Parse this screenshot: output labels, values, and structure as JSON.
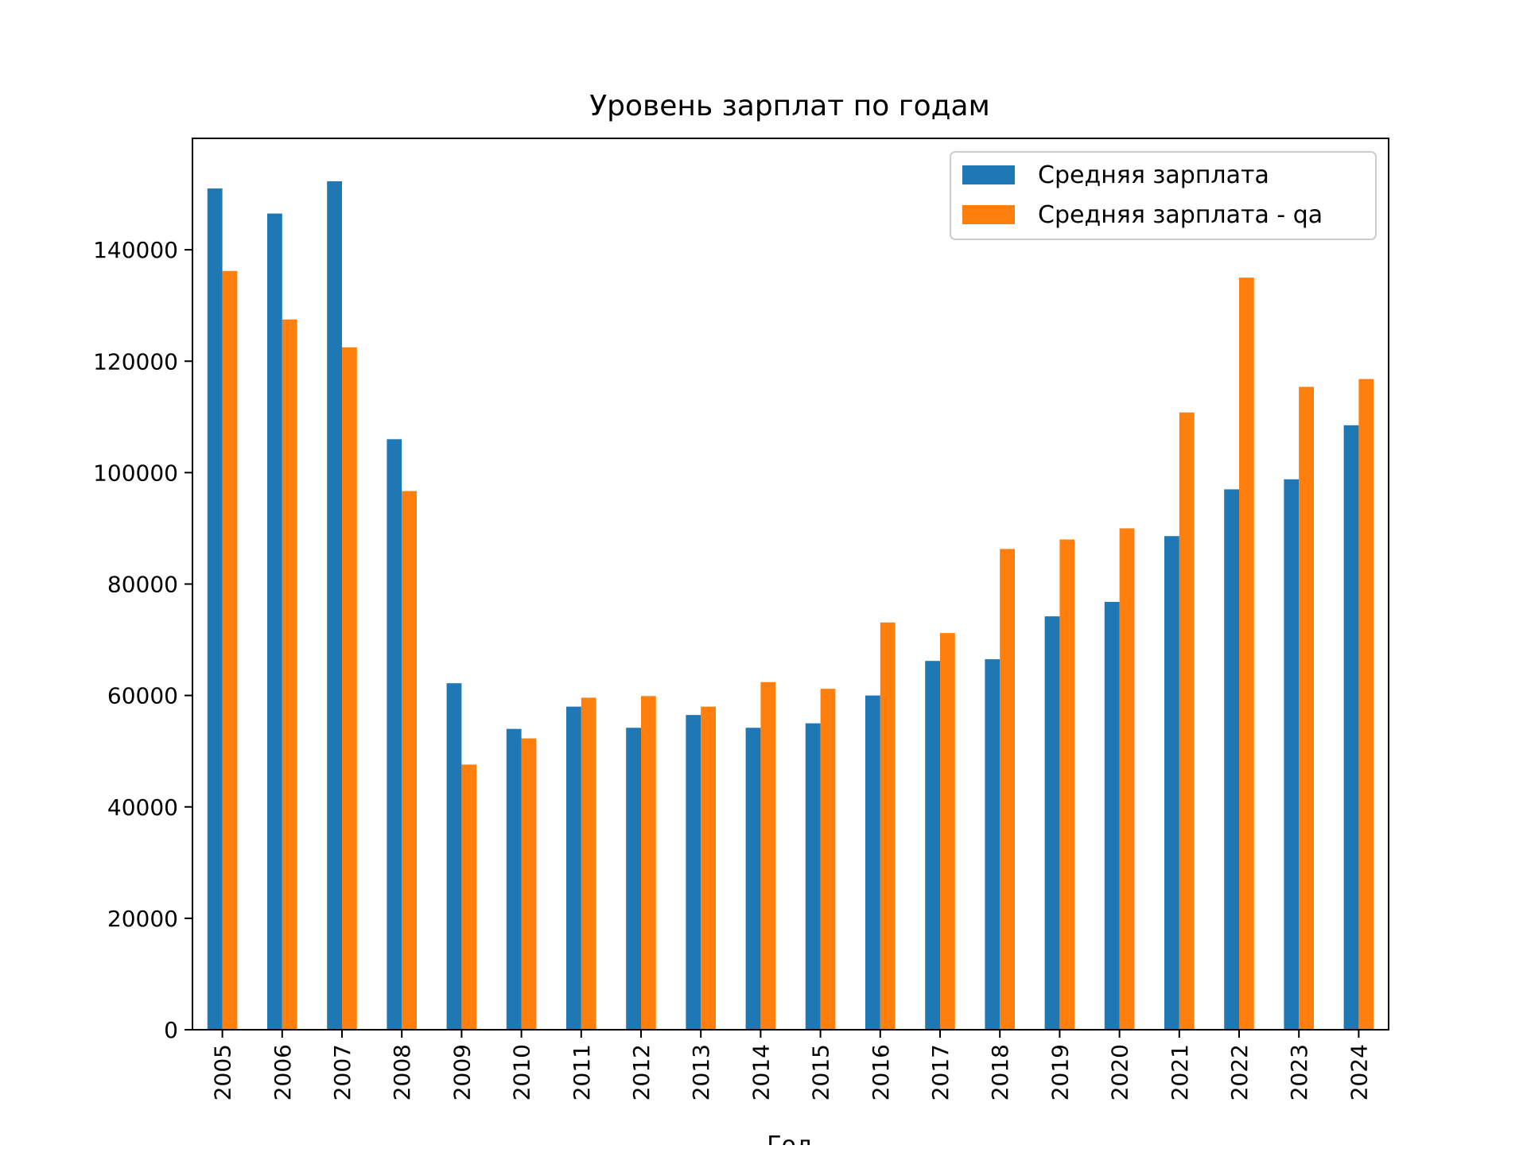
{
  "chart_data": {
    "type": "bar",
    "title": "Уровень зарплат по годам",
    "xlabel": "Год",
    "ylabel": "",
    "ylim": [
      0,
      160000
    ],
    "yticks": [
      0,
      20000,
      40000,
      60000,
      80000,
      100000,
      120000,
      140000
    ],
    "ytick_labels": [
      "0",
      "20000",
      "40000",
      "60000",
      "80000",
      "100000",
      "120000",
      "140000"
    ],
    "categories": [
      "2005",
      "2006",
      "2007",
      "2008",
      "2009",
      "2010",
      "2011",
      "2012",
      "2013",
      "2014",
      "2015",
      "2016",
      "2017",
      "2018",
      "2019",
      "2020",
      "2021",
      "2022",
      "2023",
      "2024"
    ],
    "series": [
      {
        "name": "Средняя зарплата",
        "color": "#1f77b4",
        "values": [
          151000,
          146500,
          152300,
          106000,
          62200,
          54000,
          58000,
          54200,
          56500,
          54200,
          55000,
          60000,
          66200,
          66500,
          74200,
          76800,
          88600,
          97000,
          98800,
          108500
        ]
      },
      {
        "name": "Средняя зарплата - qa",
        "color": "#ff7f0e",
        "values": [
          136200,
          127500,
          122500,
          96700,
          47600,
          52300,
          59600,
          59900,
          58000,
          62400,
          61200,
          73100,
          71200,
          86300,
          88000,
          90000,
          110800,
          135000,
          115400,
          116800
        ]
      }
    ],
    "grid": false,
    "legend_position": "top-right"
  }
}
